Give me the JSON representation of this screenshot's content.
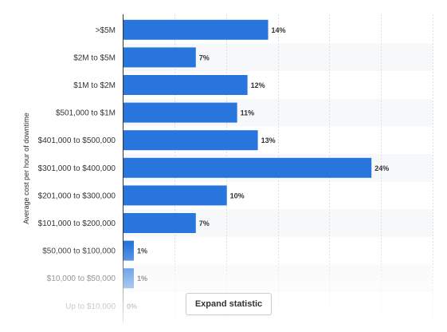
{
  "chart_data": {
    "type": "bar",
    "orientation": "horizontal",
    "categories": [
      ">$5M",
      "$2M to $5M",
      "$1M to $2M",
      "$501,000 to $1M",
      "$401,000 to $500,000",
      "$301,000 to $400,000",
      "$201,000 to $300,000",
      "$101,000 to $200,000",
      "$50,000 to $100,000",
      "$10,000 to $50,000",
      "Up to $10,000"
    ],
    "values": [
      14,
      7,
      12,
      11,
      13,
      24,
      10,
      7,
      1,
      1,
      0
    ],
    "value_labels": [
      "14%",
      "7%",
      "12%",
      "11%",
      "13%",
      "24%",
      "10%",
      "7%",
      "1%",
      "1%",
      "0%"
    ],
    "ylabel": "Average cost per hour of downtime",
    "xlim": [
      0,
      30
    ],
    "grid": true,
    "bar_color": "#2876dd"
  },
  "ui": {
    "expand_label": "Expand statistic"
  }
}
